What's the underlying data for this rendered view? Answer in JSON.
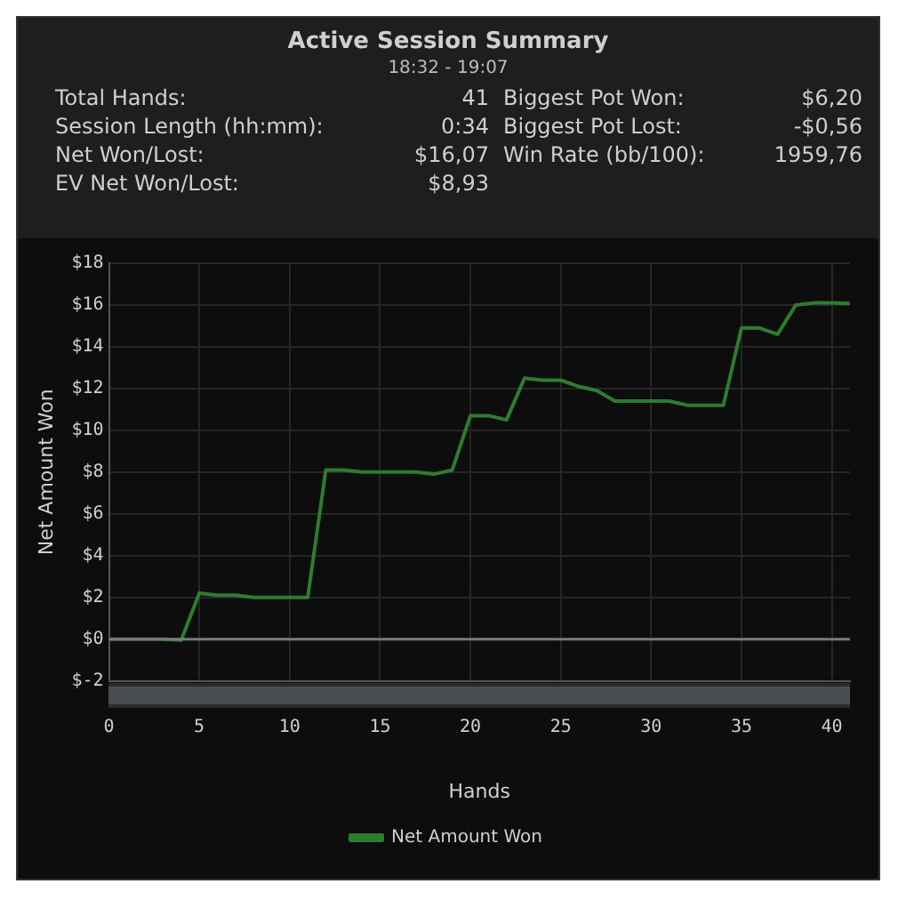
{
  "chart_data": {
    "type": "line",
    "title": "Active Session Summary",
    "subtitle": "18:32 - 19:07",
    "annotations": [
      "Total Hands:",
      "41",
      "Biggest Pot Won:",
      "$6,20",
      "Session Length (hh:mm):",
      "0:34",
      "Biggest Pot Lost:",
      "-$0,56",
      "Net Won/Lost:",
      "$16,07",
      "Win Rate (bb/100):",
      "1959,76",
      "EV Net Won/Lost:",
      "$8,93"
    ],
    "xlabel": "Hands",
    "ylabel": "Net Amount Won",
    "x": [
      0,
      1,
      2,
      3,
      4,
      5,
      6,
      7,
      8,
      9,
      10,
      11,
      12,
      13,
      14,
      15,
      16,
      17,
      18,
      19,
      20,
      21,
      22,
      23,
      24,
      25,
      26,
      27,
      28,
      29,
      30,
      31,
      32,
      33,
      34,
      35,
      36,
      37,
      38,
      39,
      40,
      41
    ],
    "series": [
      {
        "name": "Net Amount Won",
        "color": "#2e7d2e",
        "values": [
          0,
          0,
          0,
          0,
          -0.05,
          2.2,
          2.1,
          2.1,
          2.0,
          2.0,
          2.0,
          2.0,
          8.1,
          8.1,
          8.0,
          8.0,
          8.0,
          8.0,
          7.9,
          8.1,
          10.7,
          10.7,
          10.5,
          12.5,
          12.4,
          12.4,
          12.1,
          11.9,
          11.4,
          11.4,
          11.4,
          11.4,
          11.2,
          11.2,
          11.2,
          14.9,
          14.9,
          14.6,
          16.0,
          16.1,
          16.1,
          16.07
        ]
      }
    ],
    "xlim": [
      0,
      41
    ],
    "xticks": [
      0,
      5,
      10,
      15,
      20,
      25,
      30,
      35,
      40
    ],
    "ylim": [
      -2,
      18
    ],
    "yticks": [
      {
        "value": -2,
        "label": "$-2"
      },
      {
        "value": 0,
        "label": "$0"
      },
      {
        "value": 2,
        "label": "$2"
      },
      {
        "value": 4,
        "label": "$4"
      },
      {
        "value": 6,
        "label": "$6"
      },
      {
        "value": 8,
        "label": "$8"
      },
      {
        "value": 10,
        "label": "$10"
      },
      {
        "value": 12,
        "label": "$12"
      },
      {
        "value": 14,
        "label": "$14"
      },
      {
        "value": 16,
        "label": "$16"
      },
      {
        "value": 18,
        "label": "$18"
      }
    ],
    "ref_lines": [
      {
        "axis": "y",
        "value": 0,
        "color": "#7a7a7a"
      }
    ],
    "grid": true,
    "legend": "bottom",
    "marker": "none",
    "line_style": "solid"
  }
}
